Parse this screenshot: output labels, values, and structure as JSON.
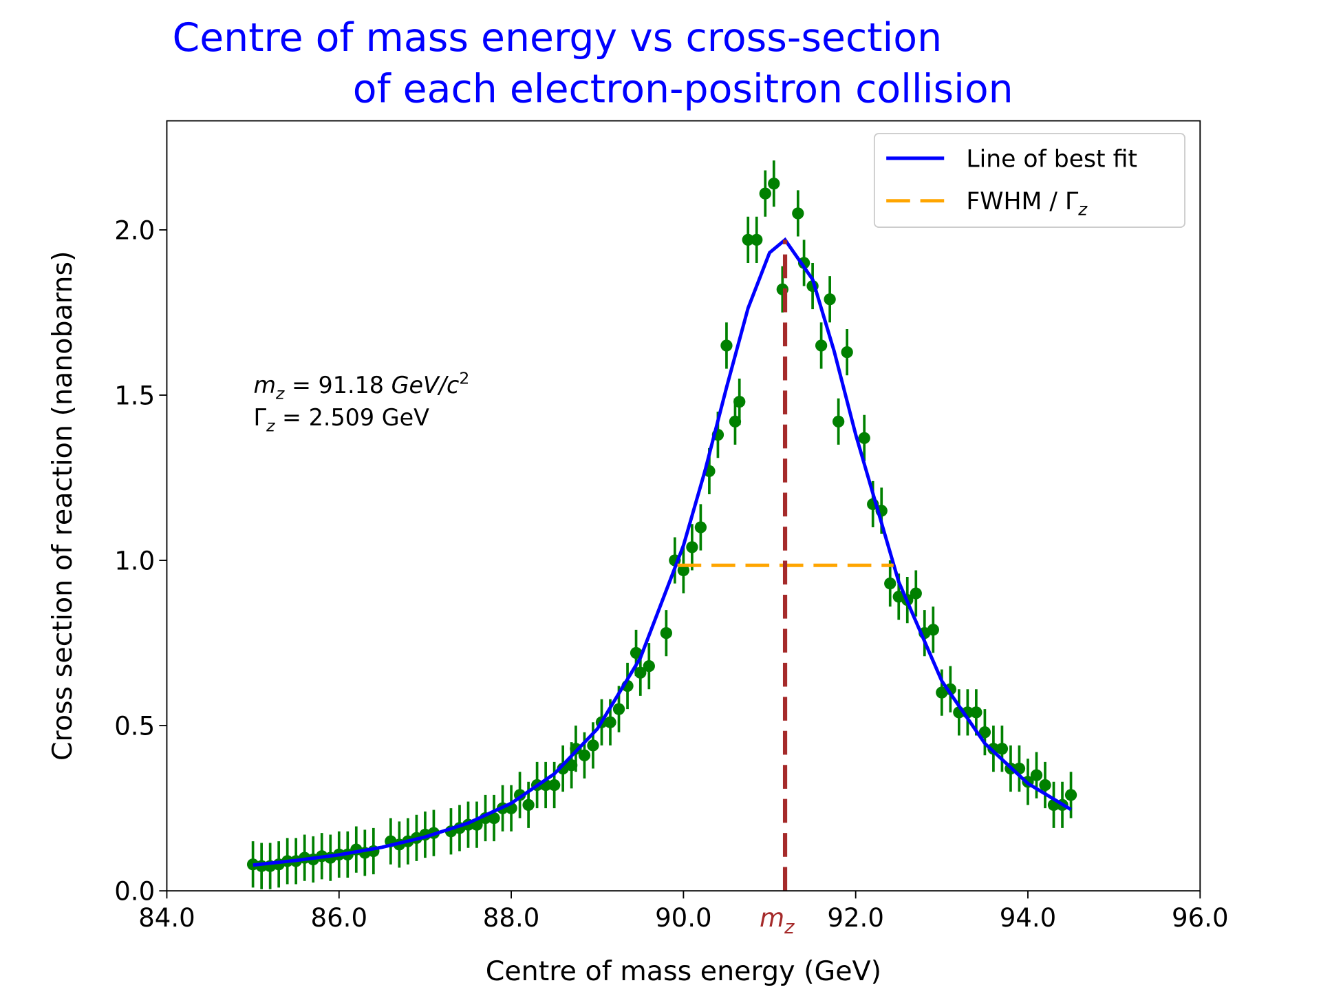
{
  "chart_data": {
    "type": "errorbar_fit",
    "title": [
      "Centre of mass energy vs cross-section",
      "of each electron-positron collision"
    ],
    "x_label": "Centre of mass energy (GeV)",
    "y_label": "Cross section of reaction (nanobarns)",
    "xlim": [
      84,
      96
    ],
    "ylim": [
      0,
      2.33
    ],
    "xticks": [
      {
        "value": 84,
        "label": "84.0"
      },
      {
        "value": 86,
        "label": "86.0"
      },
      {
        "value": 88,
        "label": "88.0"
      },
      {
        "value": 90,
        "label": "90.0"
      },
      {
        "value": 92,
        "label": "92.0"
      },
      {
        "value": 94,
        "label": "94.0"
      },
      {
        "value": 96,
        "label": "96.0"
      }
    ],
    "yticks": [
      {
        "value": 0,
        "label": "0.0"
      },
      {
        "value": 0.5,
        "label": "0.5"
      },
      {
        "value": 1,
        "label": "1.0"
      },
      {
        "value": 1.5,
        "label": "1.5"
      },
      {
        "value": 2,
        "label": "2.0"
      }
    ],
    "data": {
      "color": "#008000",
      "yerr": 0.07,
      "x": [
        85.0,
        85.1,
        85.2,
        85.3,
        85.4,
        85.5,
        85.6,
        85.7,
        85.8,
        85.9,
        86.0,
        86.1,
        86.2,
        86.3,
        86.4,
        86.6,
        86.7,
        86.8,
        86.9,
        87.0,
        87.1,
        87.3,
        87.4,
        87.5,
        87.6,
        87.7,
        87.8,
        87.9,
        88.0,
        88.1,
        88.2,
        88.3,
        88.4,
        88.5,
        88.6,
        88.7,
        88.75,
        88.85,
        88.95,
        89.05,
        89.15,
        89.25,
        89.35,
        89.45,
        89.5,
        89.6,
        89.8,
        89.9,
        90.0,
        90.1,
        90.2,
        90.3,
        90.4,
        90.5,
        90.6,
        90.65,
        90.75,
        90.85,
        90.95,
        91.05,
        91.15,
        91.33,
        91.4,
        91.5,
        91.6,
        91.7,
        91.8,
        91.9,
        92.1,
        92.2,
        92.3,
        92.4,
        92.5,
        92.6,
        92.7,
        92.8,
        92.9,
        93.0,
        93.1,
        93.2,
        93.3,
        93.4,
        93.5,
        93.6,
        93.7,
        93.8,
        93.9,
        94.0,
        94.1,
        94.2,
        94.3,
        94.4,
        94.5
      ],
      "values": [
        0.08,
        0.075,
        0.075,
        0.08,
        0.09,
        0.09,
        0.1,
        0.095,
        0.105,
        0.1,
        0.11,
        0.11,
        0.125,
        0.115,
        0.12,
        0.15,
        0.14,
        0.15,
        0.16,
        0.17,
        0.175,
        0.18,
        0.19,
        0.2,
        0.2,
        0.22,
        0.22,
        0.25,
        0.25,
        0.29,
        0.26,
        0.32,
        0.32,
        0.32,
        0.37,
        0.38,
        0.43,
        0.41,
        0.44,
        0.51,
        0.51,
        0.55,
        0.62,
        0.72,
        0.66,
        0.68,
        0.78,
        1.0,
        0.97,
        1.04,
        1.1,
        1.27,
        1.38,
        1.65,
        1.42,
        1.48,
        1.97,
        1.97,
        2.11,
        2.14,
        1.82,
        2.05,
        1.9,
        1.83,
        1.65,
        1.79,
        1.42,
        1.63,
        1.37,
        1.17,
        1.15,
        0.93,
        0.89,
        0.88,
        0.9,
        0.78,
        0.79,
        0.6,
        0.61,
        0.54,
        0.54,
        0.54,
        0.48,
        0.43,
        0.43,
        0.37,
        0.37,
        0.33,
        0.35,
        0.32,
        0.26,
        0.26,
        0.29
      ]
    },
    "fit": {
      "name": "Line of best fit",
      "color": "#0000ff",
      "x": [
        85,
        85.5,
        86,
        86.5,
        87,
        87.5,
        88,
        88.5,
        89,
        89.5,
        90,
        90.25,
        90.5,
        90.75,
        91,
        91.18,
        91.5,
        91.75,
        92,
        92.5,
        93,
        93.5,
        94,
        94.5
      ],
      "values": [
        0.078,
        0.092,
        0.109,
        0.132,
        0.163,
        0.205,
        0.265,
        0.354,
        0.49,
        0.705,
        1.045,
        1.271,
        1.523,
        1.763,
        1.931,
        1.97,
        1.85,
        1.633,
        1.381,
        0.935,
        0.635,
        0.446,
        0.325,
        0.246
      ]
    },
    "fwhm": {
      "name": "FWHM / Γ",
      "name_subscript": "z",
      "color": "#ffa500",
      "x": [
        89.93,
        92.44
      ],
      "y": 0.985
    },
    "mz_line": {
      "x": 91.18,
      "y": [
        0,
        1.97
      ],
      "color": "#a52a2a",
      "label": "m",
      "label_subscript": "z"
    },
    "annotation": [
      {
        "symbol": "m",
        "subscript": "z",
        "text": " = 91.18 ",
        "unit": "GeV/c",
        "superscript": "2"
      },
      {
        "symbol": "Γ",
        "subscript": "z",
        "text": " = 2.509 GeV"
      }
    ],
    "legend": "upper right"
  }
}
